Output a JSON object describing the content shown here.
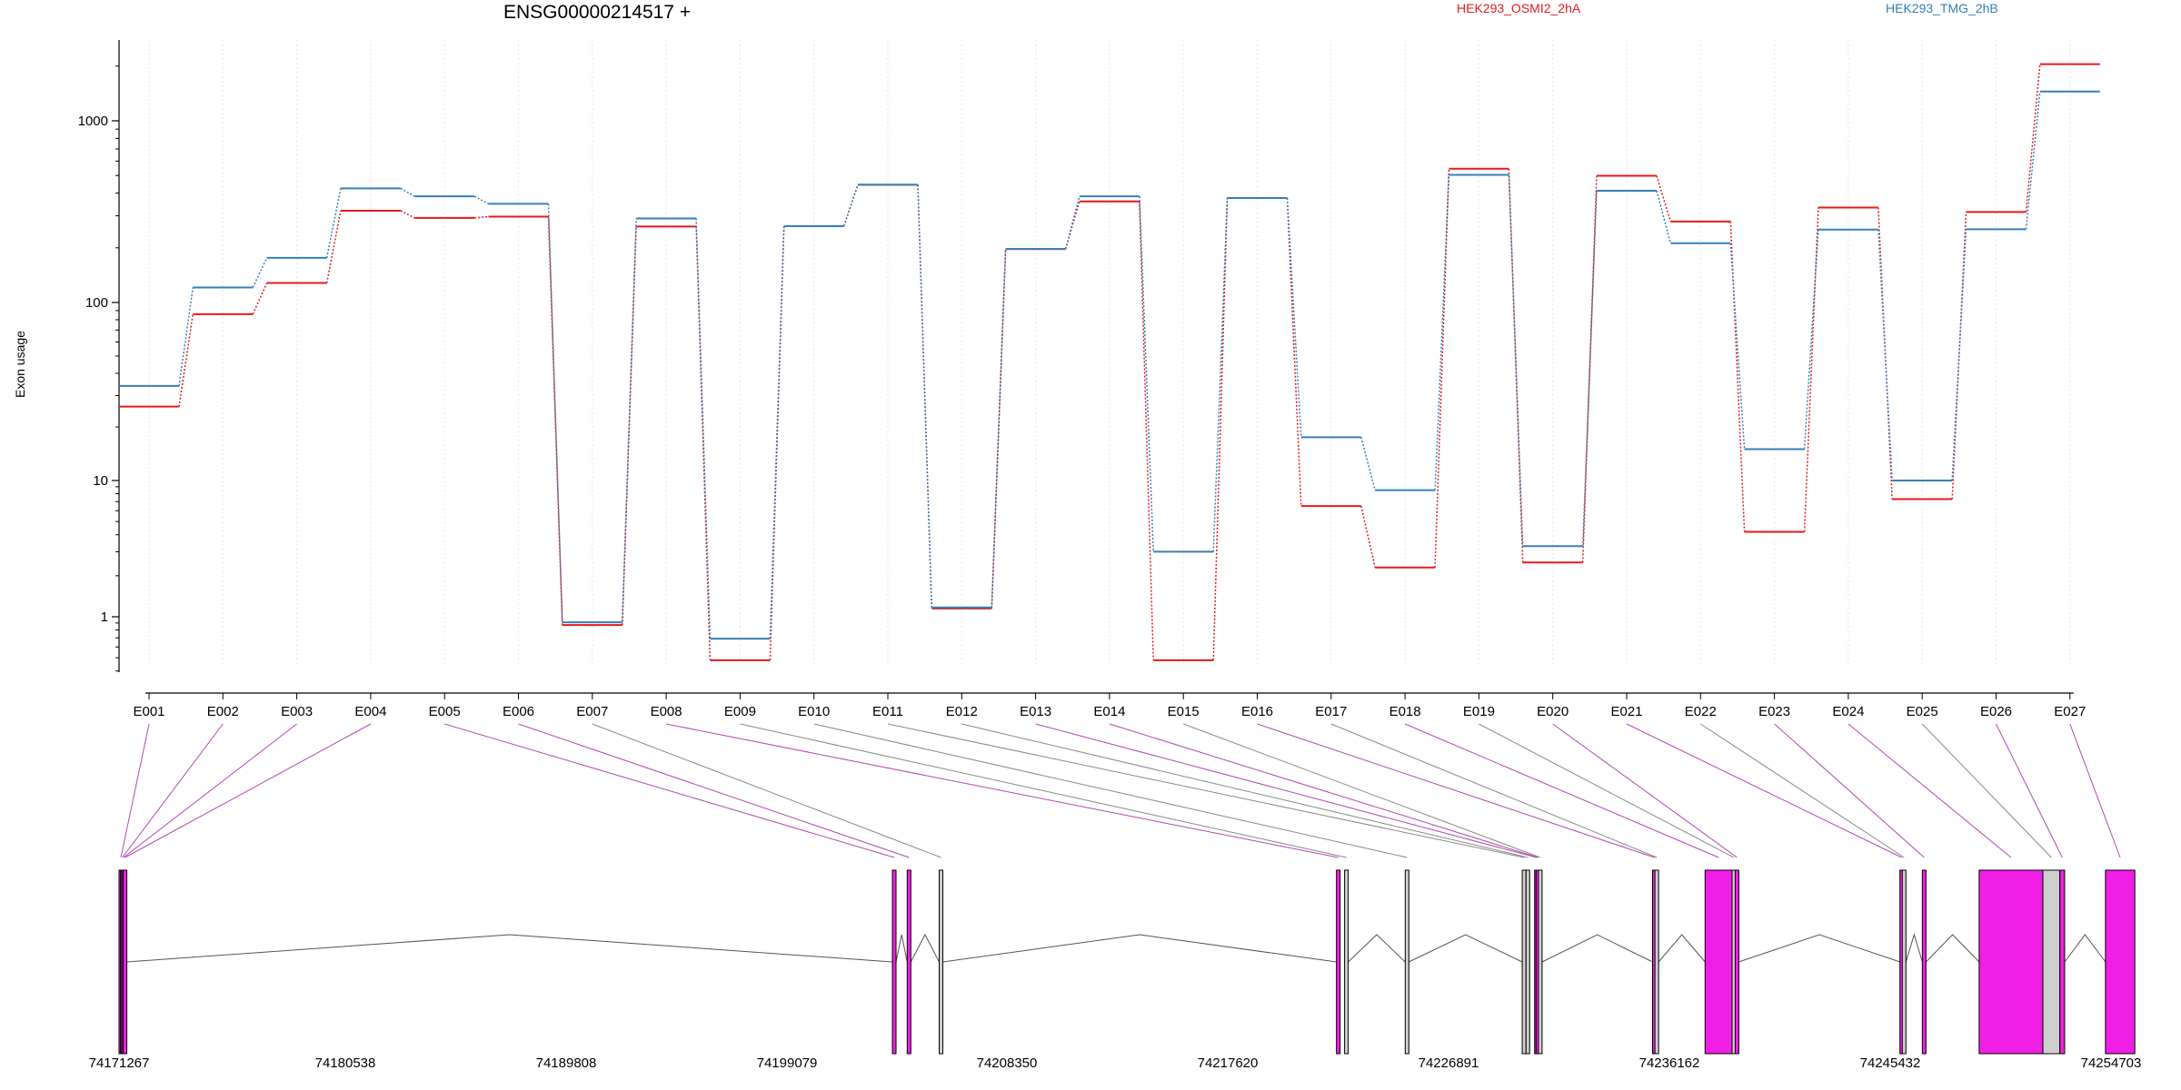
{
  "page": {
    "title": "ENSG00000214517 +"
  },
  "chart_data": {
    "type": "line",
    "scale": "log",
    "title": "ENSG00000214517 +",
    "ylabel": "Exon usage",
    "ylim": [
      0.4,
      3000
    ],
    "yticks": [
      1,
      10,
      100,
      1000
    ],
    "ytick_labels": [
      "1",
      "10",
      "100",
      "1000"
    ],
    "grid": true,
    "categories": [
      "E001",
      "E002",
      "E003",
      "E004",
      "E005",
      "E006",
      "E007",
      "E008",
      "E009",
      "E010",
      "E011",
      "E012",
      "E013",
      "E014",
      "E015",
      "E016",
      "E017",
      "E018",
      "E019",
      "E020",
      "E021",
      "E022",
      "E023",
      "E024",
      "E025",
      "E026",
      "E027"
    ],
    "series": [
      {
        "name": "HEK293_OSMI2_2hA",
        "color": "#e41a1c",
        "values": [
          26,
          86,
          128,
          320,
          292,
          297,
          0.87,
          262,
          0.48,
          263,
          445,
          1.15,
          197,
          360,
          0.48,
          376,
          6.5,
          2.3,
          545,
          2.5,
          498,
          279,
          4.2,
          333,
          7.3,
          315,
          2050
        ]
      },
      {
        "name": "HEK293_TMG_2hB",
        "color": "#377eb8",
        "values": [
          34,
          121,
          176,
          425,
          384,
          349,
          0.91,
          290,
          0.69,
          263,
          445,
          1.17,
          197,
          384,
          3.0,
          376,
          17.5,
          8.5,
          504,
          3.3,
          412,
          212,
          15.0,
          252,
          10.0,
          253,
          1450
        ]
      }
    ],
    "gene_model": {
      "axis_tick_labels": [
        "74171267",
        "74180538",
        "74189808",
        "74199079",
        "74208350",
        "74217620",
        "74226891",
        "74236162",
        "74245432",
        "74254703"
      ],
      "genomic_range": [
        74171267,
        74254703
      ],
      "exons": [
        {
          "id": "E001",
          "start": 74171267,
          "end": 74171330,
          "color": "#f01fe6"
        },
        {
          "id": "E002",
          "start": 74171330,
          "end": 74171380,
          "color": "#f01fe6"
        },
        {
          "id": "E003",
          "start": 74171380,
          "end": 74171440,
          "color": "#f01fe6"
        },
        {
          "id": "E004",
          "start": 74171440,
          "end": 74171520,
          "color": "#f01fe6"
        },
        {
          "id": "E005",
          "start": 74203660,
          "end": 74203780,
          "color": "#f01fe6"
        },
        {
          "id": "E006",
          "start": 74204280,
          "end": 74204400,
          "color": "#f01fe6"
        },
        {
          "id": "E007",
          "start": 74205620,
          "end": 74205760,
          "color": "#cfcfcf"
        },
        {
          "id": "E008",
          "start": 74222260,
          "end": 74222380,
          "color": "#f01fe6"
        },
        {
          "id": "E009",
          "start": 74222600,
          "end": 74222720,
          "color": "#cfcfcf"
        },
        {
          "id": "E010",
          "start": 74225140,
          "end": 74225240,
          "color": "#cfcfcf"
        },
        {
          "id": "E011",
          "start": 74230040,
          "end": 74230200,
          "color": "#cfcfcf"
        },
        {
          "id": "E012",
          "start": 74230200,
          "end": 74230320,
          "color": "#cfcfcf"
        },
        {
          "id": "E013",
          "start": 74230560,
          "end": 74230620,
          "color": "#f01fe6"
        },
        {
          "id": "E014",
          "start": 74230620,
          "end": 74230720,
          "color": "#f01fe6"
        },
        {
          "id": "E015",
          "start": 74230720,
          "end": 74230780,
          "color": "#cfcfcf"
        },
        {
          "id": "E016",
          "start": 74235500,
          "end": 74235600,
          "color": "#f01fe6"
        },
        {
          "id": "E017",
          "start": 74235600,
          "end": 74235700,
          "color": "#cfcfcf"
        },
        {
          "id": "E018",
          "start": 74237700,
          "end": 74238830,
          "color": "#f01fe6"
        },
        {
          "id": "E019",
          "start": 74238830,
          "end": 74238960,
          "color": "#cfcfcf"
        },
        {
          "id": "E020",
          "start": 74238960,
          "end": 74239060,
          "color": "#f01fe6"
        },
        {
          "id": "E021",
          "start": 74245860,
          "end": 74245960,
          "color": "#f01fe6"
        },
        {
          "id": "E022",
          "start": 74245960,
          "end": 74246060,
          "color": "#cfcfcf"
        },
        {
          "id": "E023",
          "start": 74246800,
          "end": 74246920,
          "color": "#f01fe6"
        },
        {
          "id": "E024",
          "start": 74249180,
          "end": 74251850,
          "color": "#f01fe6"
        },
        {
          "id": "E025",
          "start": 74251850,
          "end": 74252560,
          "color": "#cfcfcf"
        },
        {
          "id": "E026",
          "start": 74252560,
          "end": 74252760,
          "color": "#f01fe6"
        },
        {
          "id": "E027",
          "start": 74254470,
          "end": 74255700,
          "color": "#f01fe6"
        }
      ]
    }
  }
}
